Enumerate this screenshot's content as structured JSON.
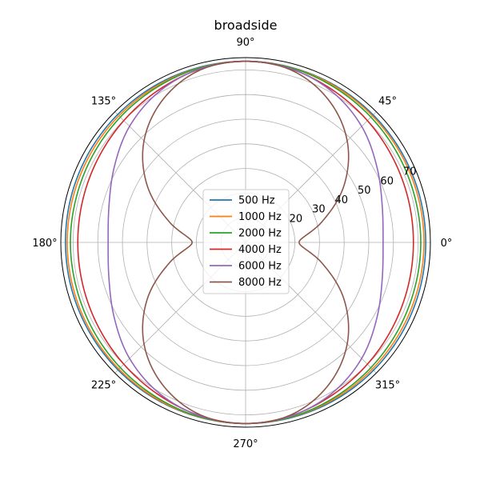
{
  "chart_data": {
    "type": "polar-line",
    "title": "broadside",
    "theta_ticks": [
      {
        "deg": 0,
        "label": "0°"
      },
      {
        "deg": 45,
        "label": "45°"
      },
      {
        "deg": 90,
        "label": "90°"
      },
      {
        "deg": 135,
        "label": "135°"
      },
      {
        "deg": 180,
        "label": "180°"
      },
      {
        "deg": 225,
        "label": "225°"
      },
      {
        "deg": 270,
        "label": "270°"
      },
      {
        "deg": 315,
        "label": "315°"
      }
    ],
    "r_ticks": [
      {
        "value": 20,
        "label": "20"
      },
      {
        "value": 30,
        "label": "30"
      },
      {
        "value": 40,
        "label": "40"
      },
      {
        "value": 50,
        "label": "50"
      },
      {
        "value": 60,
        "label": "60"
      },
      {
        "value": 70,
        "label": "70"
      }
    ],
    "r_range": [
      0,
      75
    ],
    "grid": true,
    "legend_position": "center",
    "series": [
      {
        "name": "500 Hz",
        "color": "#1f77b4",
        "values_deg_step_15": [
          73.1,
          73.1,
          73.1,
          73.2,
          73.3,
          73.4,
          73.5,
          73.5,
          73.5,
          73.4,
          73.3,
          73.2,
          73.1,
          73.1,
          73.1,
          73.2,
          73.3,
          73.4,
          73.5,
          73.5,
          73.5,
          73.4,
          73.3,
          73.2,
          73.1
        ]
      },
      {
        "name": "1000 Hz",
        "color": "#ff7f0e",
        "values_deg_step_15": [
          72.4,
          72.4,
          72.5,
          72.7,
          73.0,
          73.3,
          73.5,
          73.3,
          73.0,
          72.7,
          72.5,
          72.4,
          72.4,
          72.4,
          72.5,
          72.7,
          73.0,
          73.3,
          73.5,
          73.3,
          73.0,
          72.7,
          72.5,
          72.4,
          72.4
        ]
      },
      {
        "name": "2000 Hz",
        "color": "#2ca02c",
        "values_deg_step_15": [
          71.1,
          71.1,
          71.4,
          71.9,
          72.5,
          73.2,
          73.5,
          73.2,
          72.5,
          71.9,
          71.4,
          71.1,
          71.1,
          71.1,
          71.4,
          71.9,
          72.5,
          73.2,
          73.5,
          73.2,
          72.5,
          71.9,
          71.4,
          71.1,
          71.1
        ]
      },
      {
        "name": "4000 Hz",
        "color": "#d62728",
        "values_deg_step_15": [
          68.1,
          68.3,
          68.9,
          69.9,
          71.2,
          72.7,
          73.5,
          72.7,
          71.2,
          69.9,
          68.9,
          68.3,
          68.1,
          68.3,
          68.9,
          69.9,
          71.2,
          72.7,
          73.5,
          72.7,
          71.2,
          69.9,
          68.9,
          68.3,
          68.1
        ]
      },
      {
        "name": "6000 Hz",
        "color": "#9467bd",
        "values_deg_step_15": [
          55.8,
          57.4,
          61.5,
          66.6,
          70.5,
          72.8,
          73.5,
          72.8,
          70.5,
          66.6,
          61.5,
          57.4,
          55.8,
          57.4,
          61.5,
          66.6,
          70.5,
          72.8,
          73.5,
          72.8,
          70.5,
          66.6,
          61.5,
          57.4,
          55.8
        ]
      },
      {
        "name": "8000 Hz",
        "color": "#8c564b",
        "values_deg_step_15": [
          21.7,
          32.0,
          46.1,
          58.3,
          67.0,
          72.3,
          73.5,
          72.3,
          67.0,
          58.3,
          46.1,
          32.0,
          21.7,
          32.0,
          46.1,
          58.3,
          67.0,
          72.3,
          73.5,
          72.3,
          67.0,
          58.3,
          46.1,
          32.0,
          21.7
        ]
      }
    ]
  }
}
